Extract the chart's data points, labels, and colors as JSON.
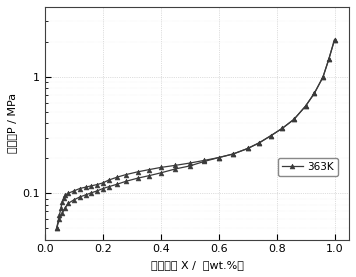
{
  "title": "",
  "xlabel": "氢含量， X /  （wt.%）",
  "ylabel": "压力，P / MPa",
  "legend_label": "363K",
  "line_color": "#3a3a3a",
  "marker_color": "#3a3a3a",
  "background_color": "#ffffff",
  "xlim": [
    0.0,
    1.05
  ],
  "ylim_log": [
    0.04,
    4.0
  ],
  "absorption_x": [
    0.04,
    0.05,
    0.055,
    0.06,
    0.065,
    0.07,
    0.08,
    0.1,
    0.12,
    0.14,
    0.16,
    0.18,
    0.2,
    0.22,
    0.25,
    0.28,
    0.32,
    0.36,
    0.4,
    0.45,
    0.5,
    0.55,
    0.6,
    0.65,
    0.7,
    0.74,
    0.78,
    0.82,
    0.86,
    0.9,
    0.93,
    0.96,
    0.98,
    1.0
  ],
  "absorption_y": [
    0.05,
    0.065,
    0.075,
    0.085,
    0.092,
    0.097,
    0.1,
    0.105,
    0.11,
    0.113,
    0.116,
    0.119,
    0.123,
    0.13,
    0.138,
    0.145,
    0.153,
    0.16,
    0.167,
    0.174,
    0.182,
    0.192,
    0.203,
    0.218,
    0.243,
    0.272,
    0.313,
    0.363,
    0.433,
    0.563,
    0.723,
    1.0,
    1.42,
    2.1
  ],
  "desorption_x": [
    1.0,
    0.98,
    0.96,
    0.93,
    0.9,
    0.86,
    0.82,
    0.78,
    0.74,
    0.7,
    0.65,
    0.6,
    0.55,
    0.5,
    0.45,
    0.4,
    0.36,
    0.32,
    0.28,
    0.25,
    0.22,
    0.2,
    0.18,
    0.16,
    0.14,
    0.12,
    0.1,
    0.08,
    0.07,
    0.06,
    0.05,
    0.04
  ],
  "desorption_y": [
    2.1,
    1.42,
    1.0,
    0.723,
    0.563,
    0.433,
    0.363,
    0.313,
    0.272,
    0.243,
    0.218,
    0.203,
    0.188,
    0.172,
    0.162,
    0.15,
    0.142,
    0.135,
    0.127,
    0.12,
    0.114,
    0.11,
    0.105,
    0.101,
    0.097,
    0.093,
    0.088,
    0.082,
    0.075,
    0.068,
    0.06,
    0.05
  ],
  "xticks": [
    0.0,
    0.2,
    0.4,
    0.6,
    0.8,
    1.0
  ],
  "yticks": [
    0.1,
    1.0
  ],
  "ytick_labels": [
    "0.1",
    "1"
  ]
}
